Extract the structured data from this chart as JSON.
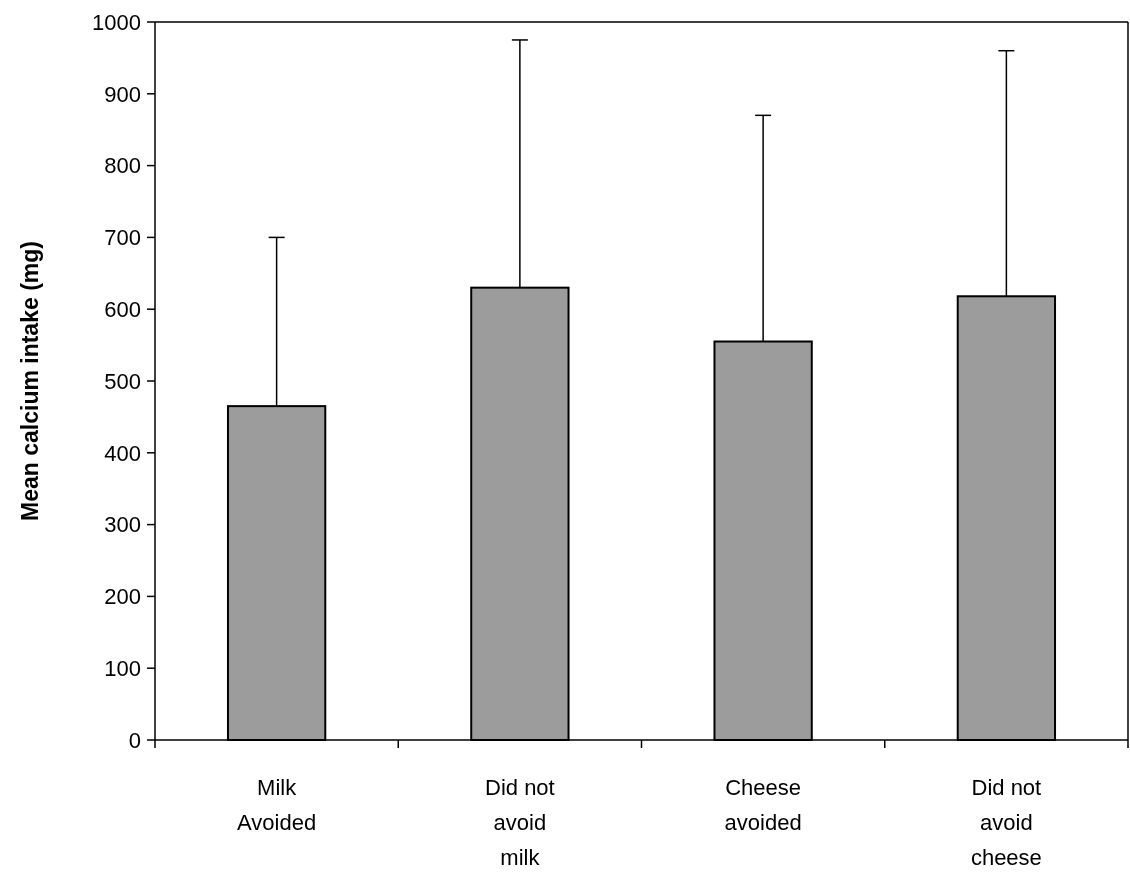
{
  "chart_data": {
    "type": "bar",
    "ylabel": "Mean calcium intake (mg)",
    "categories": [
      "Milk\nAvoided",
      "Did not\navoid\nmilk",
      "Cheese\navoided",
      "Did not\navoid\ncheese"
    ],
    "values": [
      465,
      630,
      555,
      618
    ],
    "errors": [
      [
        465,
        700
      ],
      [
        630,
        975
      ],
      [
        555,
        870
      ],
      [
        618,
        960
      ]
    ],
    "color": "#9c9c9c",
    "ylim": [
      0,
      1000
    ],
    "yticks": [
      0,
      100,
      200,
      300,
      400,
      500,
      600,
      700,
      800,
      900,
      1000
    ],
    "grid": false
  }
}
